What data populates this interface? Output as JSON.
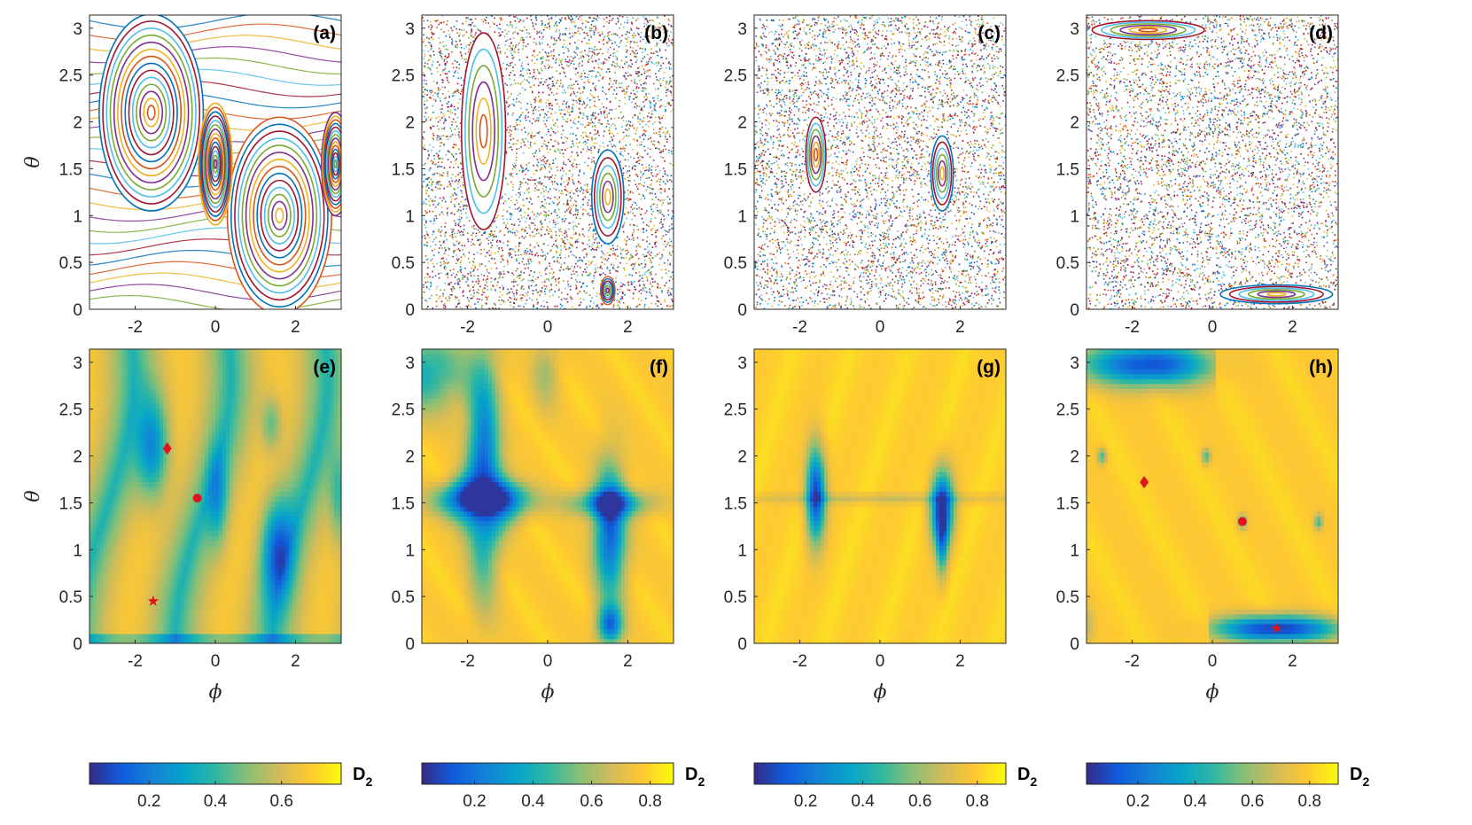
{
  "figure": {
    "description_free": true,
    "axis_label_phi": "ϕ",
    "axis_label_theta": "θ",
    "colorbar_label": "D",
    "colorbar_subscript": "2"
  },
  "colors": {
    "parula": [
      "#352a87",
      "#0f5cdd",
      "#1481d6",
      "#06a4ca",
      "#2eb7a4",
      "#87bf77",
      "#d1bb59",
      "#fec832",
      "#f9fb0e"
    ],
    "axis": "#262626",
    "marker": "#e0141e"
  },
  "chart_data": [
    {
      "type": "scatter",
      "label": "(a)",
      "kind": "poincare-regular",
      "xlabel": "",
      "ylabel": "θ",
      "xlim": [
        -3.14,
        3.14
      ],
      "ylim": [
        0,
        3.14
      ],
      "xticks": [
        -2,
        0,
        2
      ],
      "yticks": [
        0,
        0.5,
        1,
        1.5,
        2,
        2.5,
        3
      ],
      "islands": [
        {
          "x": -1.6,
          "y": 2.1,
          "rx": 1.3,
          "ry": 1.05
        },
        {
          "x": 1.6,
          "y": 1.0,
          "rx": 1.3,
          "ry": 1.05
        },
        {
          "x": 0.0,
          "y": 1.55,
          "rx": 0.42,
          "ry": 0.65
        },
        {
          "x": 3.0,
          "y": 1.55,
          "rx": 0.35,
          "ry": 0.55
        }
      ]
    },
    {
      "type": "scatter",
      "label": "(b)",
      "kind": "poincare-chaotic",
      "xlabel": "",
      "ylabel": "",
      "xlim": [
        -3.14,
        3.14
      ],
      "ylim": [
        0,
        3.14
      ],
      "xticks": [
        -2,
        0,
        2
      ],
      "yticks": [
        0,
        0.5,
        1,
        1.5,
        2,
        2.5,
        3
      ],
      "islands": [
        {
          "x": -1.6,
          "y": 1.9,
          "rx": 0.55,
          "ry": 1.05
        },
        {
          "x": 1.5,
          "y": 1.2,
          "rx": 0.4,
          "ry": 0.5
        },
        {
          "x": 1.5,
          "y": 0.2,
          "rx": 0.18,
          "ry": 0.15
        }
      ]
    },
    {
      "type": "scatter",
      "label": "(c)",
      "kind": "poincare-chaotic",
      "xlabel": "",
      "ylabel": "",
      "xlim": [
        -3.14,
        3.14
      ],
      "ylim": [
        0,
        3.14
      ],
      "xticks": [
        -2,
        0,
        2
      ],
      "yticks": [
        0,
        0.5,
        1,
        1.5,
        2,
        2.5,
        3
      ],
      "islands": [
        {
          "x": -1.6,
          "y": 1.65,
          "rx": 0.25,
          "ry": 0.4
        },
        {
          "x": 1.55,
          "y": 1.45,
          "rx": 0.28,
          "ry": 0.4
        }
      ]
    },
    {
      "type": "scatter",
      "label": "(d)",
      "kind": "poincare-chaotic",
      "xlabel": "",
      "ylabel": "",
      "xlim": [
        -3.14,
        3.14
      ],
      "ylim": [
        0,
        3.14
      ],
      "xticks": [
        -2,
        0,
        2
      ],
      "yticks": [
        0,
        0.5,
        1,
        1.5,
        2,
        2.5,
        3
      ],
      "islands": [
        {
          "x": -1.6,
          "y": 2.98,
          "rx": 1.4,
          "ry": 0.1
        },
        {
          "x": 1.6,
          "y": 0.16,
          "rx": 1.4,
          "ry": 0.1
        }
      ]
    },
    {
      "type": "heatmap",
      "label": "(e)",
      "cmap": "parula",
      "xlabel": "ϕ",
      "ylabel": "θ",
      "xlim": [
        -3.14,
        3.14
      ],
      "ylim": [
        0,
        3.14
      ],
      "xticks": [
        -2,
        0,
        2
      ],
      "yticks": [
        0,
        0.5,
        1,
        1.5,
        2,
        2.5,
        3
      ],
      "clim": [
        0.02,
        0.78
      ],
      "cticks": [
        0.2,
        0.4,
        0.6
      ],
      "markers": [
        {
          "shape": "diamond",
          "x": -1.2,
          "y": 2.08
        },
        {
          "shape": "circle",
          "x": -0.45,
          "y": 1.55
        },
        {
          "shape": "star",
          "x": -1.55,
          "y": 0.45
        }
      ]
    },
    {
      "type": "heatmap",
      "label": "(f)",
      "cmap": "parula",
      "xlabel": "ϕ",
      "ylabel": "",
      "xlim": [
        -3.14,
        3.14
      ],
      "ylim": [
        0,
        3.14
      ],
      "xticks": [
        -2,
        0,
        2
      ],
      "yticks": [
        0,
        0.5,
        1,
        1.5,
        2,
        2.5,
        3
      ],
      "clim": [
        0.02,
        0.88
      ],
      "cticks": [
        0.2,
        0.4,
        0.6,
        0.8
      ],
      "markers": []
    },
    {
      "type": "heatmap",
      "label": "(g)",
      "cmap": "parula",
      "xlabel": "ϕ",
      "ylabel": "",
      "xlim": [
        -3.14,
        3.14
      ],
      "ylim": [
        0,
        3.14
      ],
      "xticks": [
        -2,
        0,
        2
      ],
      "yticks": [
        0,
        0.5,
        1,
        1.5,
        2,
        2.5,
        3
      ],
      "clim": [
        0.02,
        0.9
      ],
      "cticks": [
        0.2,
        0.4,
        0.6,
        0.8
      ],
      "markers": []
    },
    {
      "type": "heatmap",
      "label": "(h)",
      "cmap": "parula",
      "xlabel": "ϕ",
      "ylabel": "",
      "xlim": [
        -3.14,
        3.14
      ],
      "ylim": [
        0,
        3.14
      ],
      "xticks": [
        -2,
        0,
        2
      ],
      "yticks": [
        0,
        0.5,
        1,
        1.5,
        2,
        2.5,
        3
      ],
      "clim": [
        0.02,
        0.9
      ],
      "cticks": [
        0.2,
        0.4,
        0.6,
        0.8
      ],
      "markers": [
        {
          "shape": "diamond",
          "x": -1.7,
          "y": 1.72
        },
        {
          "shape": "circle",
          "x": 0.75,
          "y": 1.3
        },
        {
          "shape": "star",
          "x": 1.6,
          "y": 0.16
        }
      ]
    }
  ]
}
